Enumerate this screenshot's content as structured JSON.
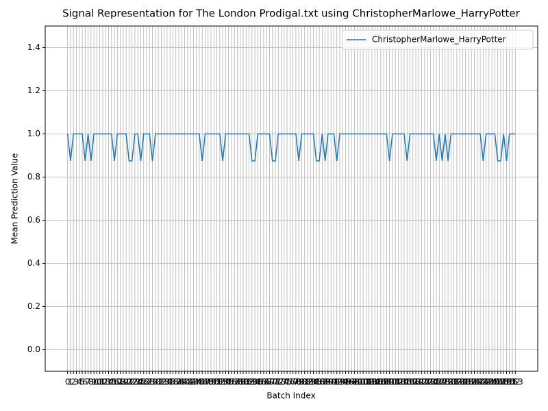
{
  "chart_data": {
    "type": "line",
    "title": "Signal Representation for The London Prodigal.txt using ChristopherMarlowe_HarryPotter",
    "x_label": "Batch Index",
    "y_label": "Mean Prediction Value",
    "x": [
      0,
      1,
      2,
      3,
      4,
      5,
      6,
      7,
      8,
      9,
      10,
      11,
      12,
      13,
      14,
      15,
      16,
      17,
      18,
      19,
      20,
      21,
      22,
      23,
      24,
      25,
      26,
      27,
      28,
      29,
      30,
      31,
      32,
      33,
      34,
      35,
      36,
      37,
      38,
      39,
      40,
      41,
      42,
      43,
      44,
      45,
      46,
      47,
      48,
      49,
      50,
      51,
      52,
      53,
      54,
      55,
      56,
      57,
      58,
      59,
      60,
      61,
      62,
      63,
      64,
      65,
      66,
      67,
      68,
      69,
      70,
      71,
      72,
      73,
      74,
      75,
      76,
      77,
      78,
      79,
      80,
      81,
      82,
      83,
      84,
      85,
      86,
      87,
      88,
      89,
      90,
      91,
      92,
      93,
      94,
      95,
      96,
      97,
      98,
      99,
      100,
      101,
      102,
      103,
      104,
      105,
      106,
      107,
      108,
      109,
      110,
      111,
      112,
      113,
      114,
      115,
      116,
      117,
      118,
      119,
      120,
      121,
      122,
      123,
      124,
      125,
      126,
      127,
      128,
      129,
      130,
      131,
      132,
      133,
      134,
      135,
      136,
      137,
      138,
      139,
      140,
      141,
      142,
      143,
      144,
      145,
      146,
      147,
      148,
      149,
      150,
      151,
      152,
      153
    ],
    "series": [
      {
        "name": "ChristopherMarlowe_HarryPotter",
        "color": "#1f77b4",
        "values": [
          1,
          0.875,
          1,
          1,
          1,
          1,
          0.875,
          1,
          0.875,
          1,
          1,
          1,
          1,
          1,
          1,
          1,
          0.875,
          1,
          1,
          1,
          1,
          0.875,
          0.875,
          1,
          1,
          0.875,
          1,
          1,
          1,
          0.875,
          1,
          1,
          1,
          1,
          1,
          1,
          1,
          1,
          1,
          1,
          1,
          1,
          1,
          1,
          1,
          1,
          0.875,
          1,
          1,
          1,
          1,
          1,
          1,
          0.875,
          1,
          1,
          1,
          1,
          1,
          1,
          1,
          1,
          1,
          0.875,
          0.875,
          1,
          1,
          1,
          1,
          1,
          0.875,
          0.875,
          1,
          1,
          1,
          1,
          1,
          1,
          1,
          0.875,
          1,
          1,
          1,
          1,
          1,
          0.875,
          0.875,
          1,
          0.875,
          1,
          1,
          1,
          0.875,
          1,
          1,
          1,
          1,
          1,
          1,
          1,
          1,
          1,
          1,
          1,
          1,
          1,
          1,
          1,
          1,
          1,
          0.875,
          1,
          1,
          1,
          1,
          1,
          0.875,
          1,
          1,
          1,
          1,
          1,
          1,
          1,
          1,
          1,
          0.875,
          1,
          0.875,
          1,
          0.875,
          1,
          1,
          1,
          1,
          1,
          1,
          1,
          1,
          1,
          1,
          1,
          0.875,
          1,
          1,
          1,
          1,
          0.875,
          0.875,
          1,
          0.875,
          1,
          1,
          1
        ]
      }
    ],
    "xlim": [
      -7.65,
      160.65
    ],
    "xticks": [
      0,
      1,
      2,
      3,
      4,
      5,
      6,
      7,
      8,
      9,
      10,
      11,
      12,
      13,
      14,
      15,
      16,
      17,
      18,
      19,
      20,
      21,
      22,
      23,
      24,
      25,
      26,
      27,
      28,
      29,
      30,
      31,
      32,
      33,
      34,
      35,
      36,
      37,
      38,
      39,
      40,
      41,
      42,
      43,
      44,
      45,
      46,
      47,
      48,
      49,
      50,
      51,
      52,
      53,
      54,
      55,
      56,
      57,
      58,
      59,
      60,
      61,
      62,
      63,
      64,
      65,
      66,
      67,
      68,
      69,
      70,
      71,
      72,
      73,
      74,
      75,
      76,
      77,
      78,
      79,
      80,
      81,
      82,
      83,
      84,
      85,
      86,
      87,
      88,
      89,
      90,
      91,
      92,
      93,
      94,
      95,
      96,
      97,
      98,
      99,
      100,
      101,
      102,
      103,
      104,
      105,
      106,
      107,
      108,
      109,
      110,
      111,
      112,
      113,
      114,
      115,
      116,
      117,
      118,
      119,
      120,
      121,
      122,
      123,
      124,
      125,
      126,
      127,
      128,
      129,
      130,
      131,
      132,
      133,
      134,
      135,
      136,
      137,
      138,
      139,
      140,
      141,
      142,
      143,
      144,
      145,
      146,
      147,
      148,
      149,
      150,
      151,
      152,
      153
    ],
    "ylim": [
      -0.1,
      1.5
    ],
    "yticks": [
      {
        "value": 0,
        "label": "0.0"
      },
      {
        "value": 0.2,
        "label": "0.2"
      },
      {
        "value": 0.4,
        "label": "0.4"
      },
      {
        "value": 0.6,
        "label": "0.6"
      },
      {
        "value": 0.8,
        "label": "0.8"
      },
      {
        "value": 1,
        "label": "1.0"
      },
      {
        "value": 1.2,
        "label": "1.2"
      },
      {
        "value": 1.4,
        "label": "1.4"
      }
    ],
    "grid": true,
    "legend": "upper right"
  }
}
